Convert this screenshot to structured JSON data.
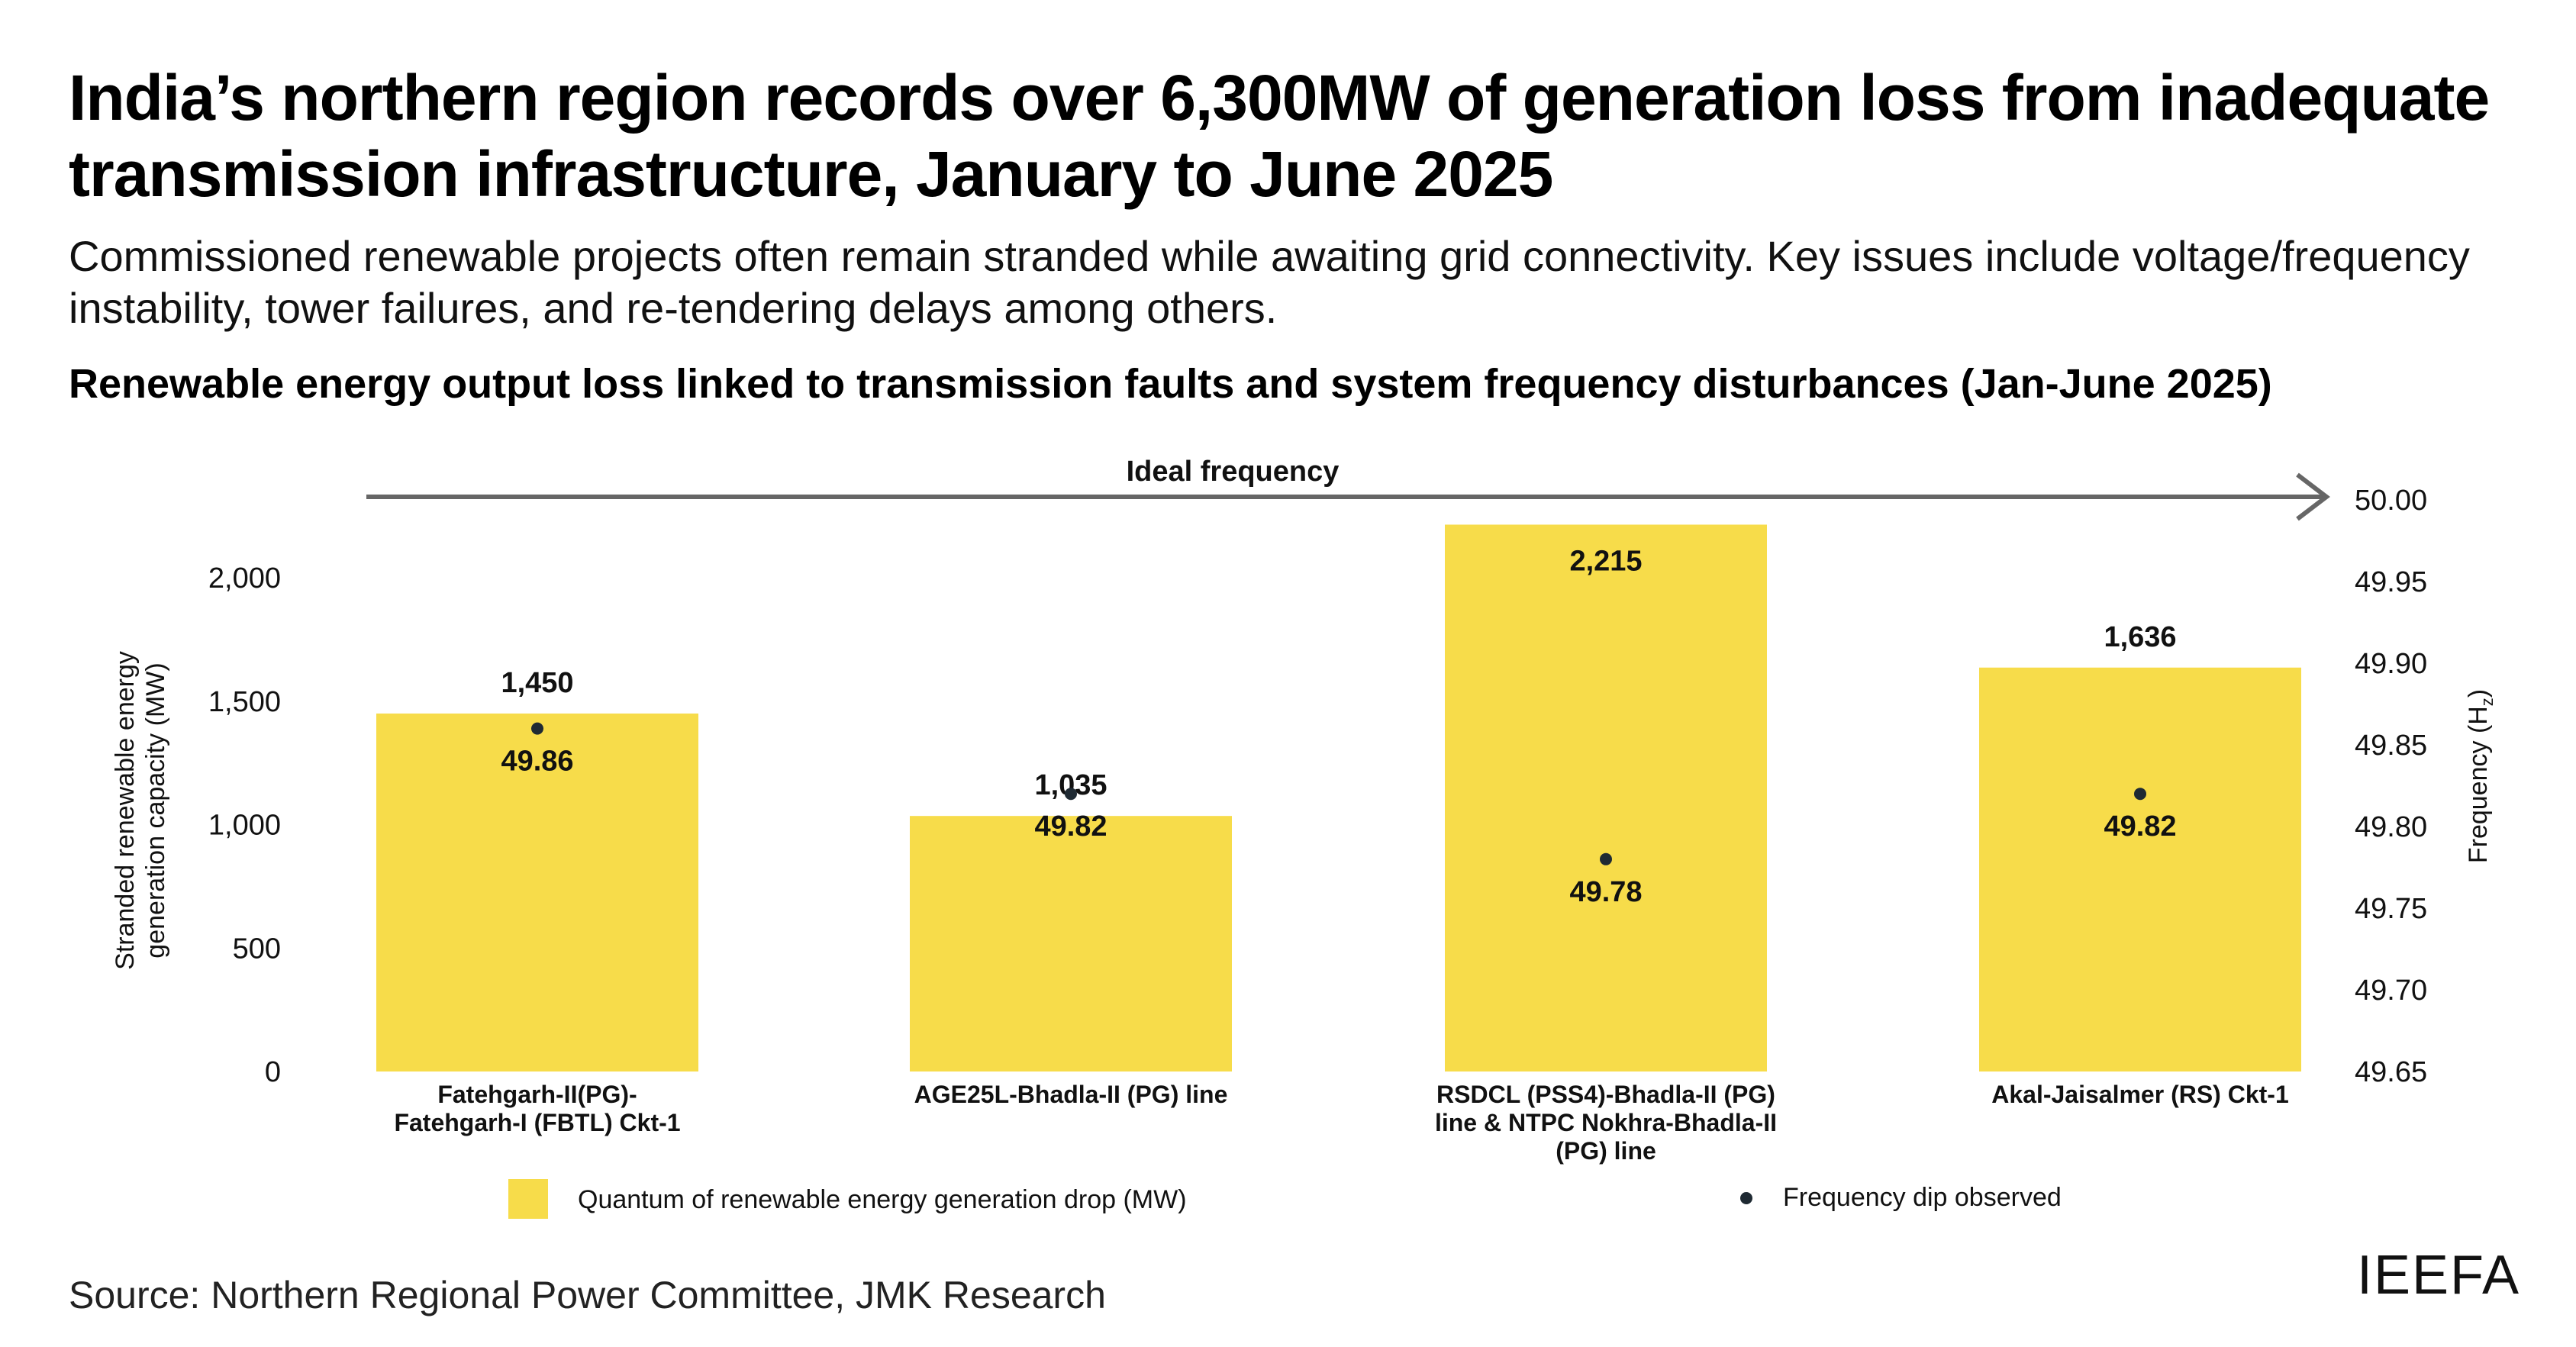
{
  "title": "India’s northern region records over 6,300MW of generation loss from inadequate transmission infrastructure, January to June 2025",
  "subtitle": "Commissioned renewable projects often remain stranded while awaiting grid connectivity. Key issues include voltage/frequency instability, tower failures, and re-tendering delays among others.",
  "source": "Source: Northern Regional Power Committee, JMK Research",
  "logo": "IEEFA",
  "chart_data": {
    "type": "bar",
    "title": "Renewable energy output loss linked to transmission faults and system frequency disturbances (Jan-June 2025)",
    "annotation": "Ideal frequency",
    "categories": [
      [
        "Fatehgarh-II(PG)-",
        "Fatehgarh-I (FBTL) Ckt-1"
      ],
      [
        "AGE25L-Bhadla-II (PG) line"
      ],
      [
        "RSDCL (PSS4)-Bhadla-II (PG)",
        "line & NTPC Nokhra-Bhadla-II",
        "(PG) line"
      ],
      [
        "Akal-Jaisalmer (RS) Ckt-1"
      ]
    ],
    "series": [
      {
        "name": "Quantum of renewable energy generation drop (MW)",
        "type": "bar",
        "axis": "left",
        "values": [
          1450,
          1035,
          2215,
          1636
        ],
        "labels": [
          "1,450",
          "1,035",
          "2,215",
          "1,636"
        ],
        "color": "#F7DC4A"
      },
      {
        "name": "Frequency dip observed",
        "type": "scatter",
        "axis": "right",
        "values": [
          49.86,
          49.82,
          49.78,
          49.82
        ],
        "labels": [
          "49.86",
          "49.82",
          "49.78",
          "49.82"
        ],
        "color": "#1F2A33"
      }
    ],
    "ylabel": "Stranded renewable energy generation capacity (MW)",
    "ylabel_lines": [
      "Stranded renewable energy",
      "generation capacity (MW)"
    ],
    "y2label": "Frequency (Hz)",
    "ylim": [
      0,
      2000
    ],
    "yticks": [
      "0",
      "500",
      "1,000",
      "1,500",
      "2,000"
    ],
    "ytick_values": [
      0,
      500,
      1000,
      1500,
      2000
    ],
    "y2lim": [
      49.65,
      50.0
    ],
    "y2ticks": [
      "49.65",
      "49.70",
      "49.75",
      "49.80",
      "49.85",
      "49.90",
      "49.95",
      "50.00"
    ],
    "y2tick_values": [
      49.65,
      49.7,
      49.75,
      49.8,
      49.85,
      49.9,
      49.95,
      50.0
    ],
    "grid": false,
    "legend": "bottom",
    "arrow_color": "#666666"
  }
}
